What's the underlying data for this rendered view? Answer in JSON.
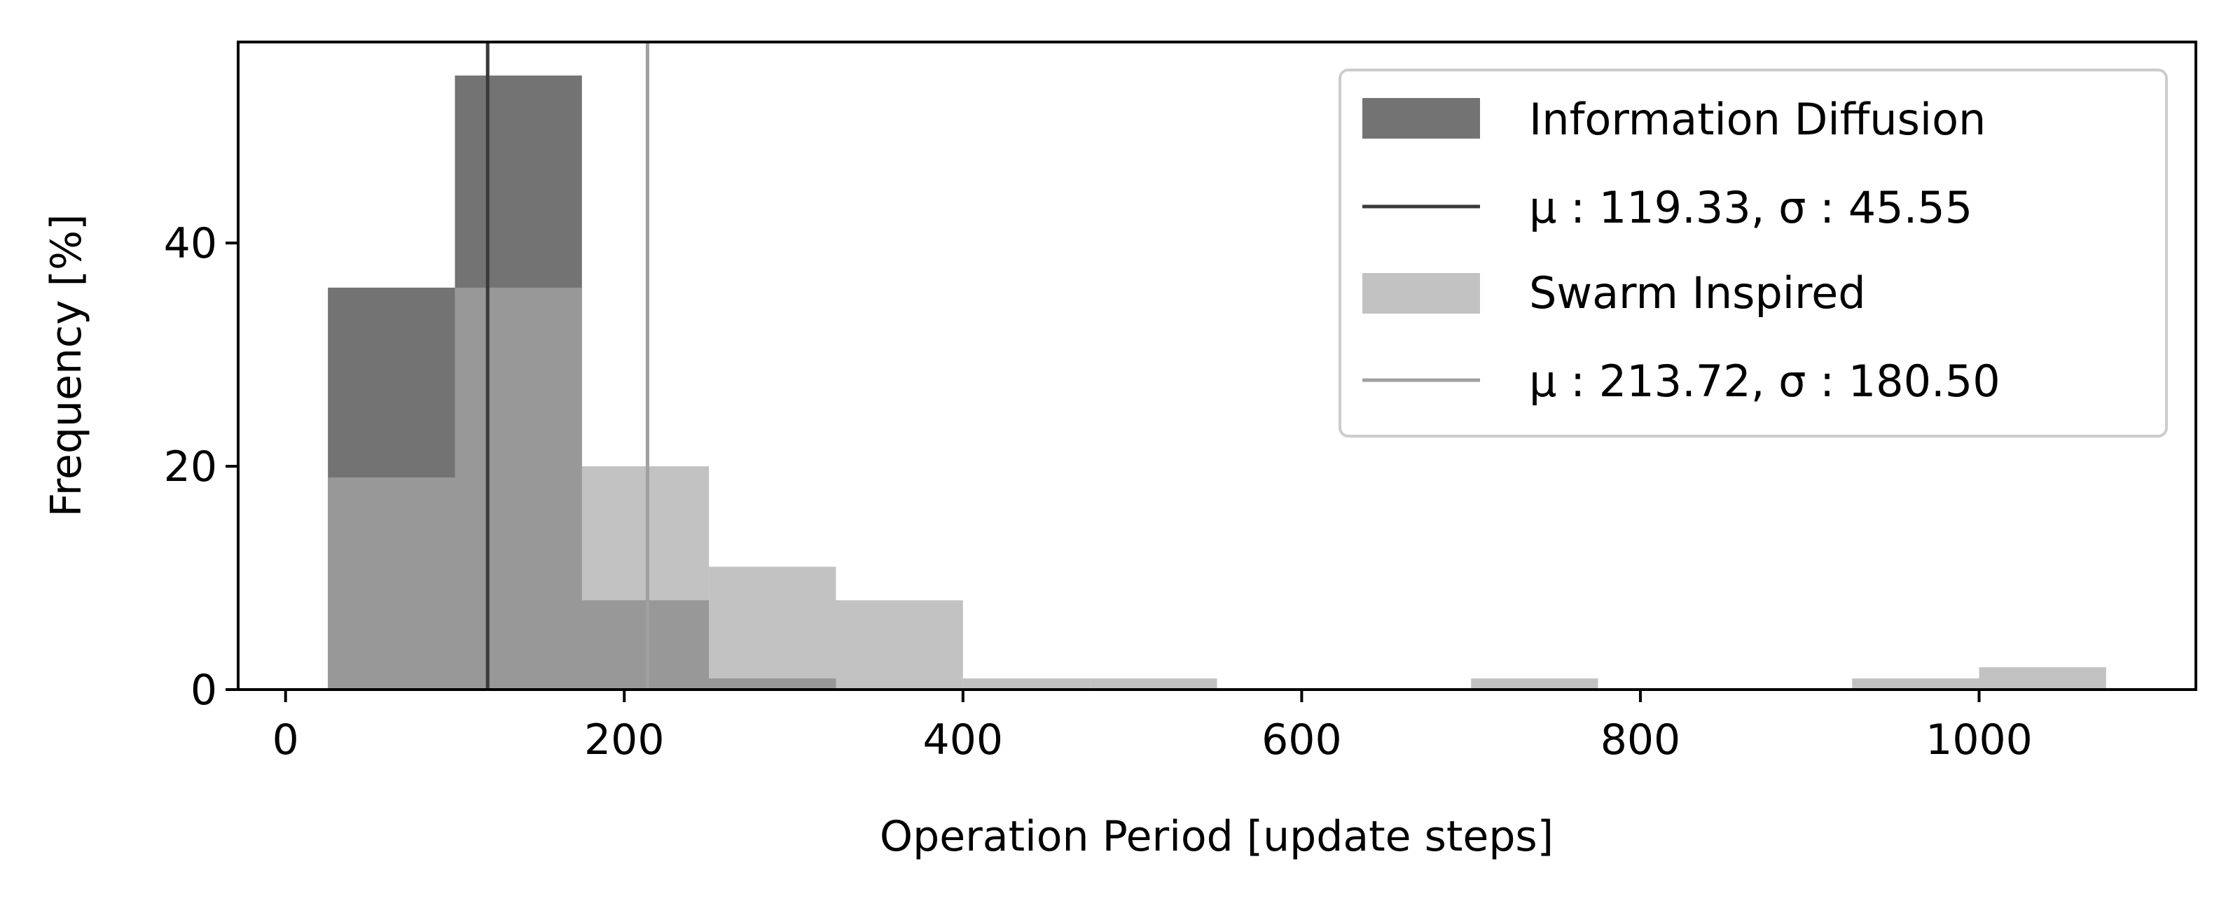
{
  "chart_data": {
    "type": "histogram",
    "xlabel": "Operation Period [update steps]",
    "ylabel": "Frequency [%]",
    "xlim": [
      -28,
      1128
    ],
    "ylim": [
      0,
      58
    ],
    "xticks": [
      0,
      200,
      400,
      600,
      800,
      1000
    ],
    "yticks": [
      0,
      20,
      40
    ],
    "bin_edges": [
      25,
      100,
      175,
      250,
      325,
      400,
      475,
      550,
      625,
      700,
      775,
      850,
      925,
      1000,
      1075
    ],
    "grid": false,
    "legend_position": "upper-right",
    "series": [
      {
        "name": "Information Diffusion",
        "color": "#5a5a5a",
        "opacity": 0.85,
        "values": [
          36,
          55,
          8,
          1,
          0,
          0,
          0,
          0,
          0,
          0,
          0,
          0,
          0,
          0
        ],
        "mean": 119.33,
        "mean_label": "μ : 119.33,  σ : 45.55",
        "mean_color": "#3a3a3a"
      },
      {
        "name": "Swarm Inspired",
        "color": "#a8a8a8",
        "opacity": 0.7,
        "values": [
          19,
          36,
          20,
          11,
          8,
          1,
          1,
          0,
          0,
          1,
          0,
          0,
          1,
          2
        ],
        "mean": 213.72,
        "mean_label": "μ : 213.72,  σ : 180.50",
        "mean_color": "#a0a0a0"
      }
    ]
  }
}
